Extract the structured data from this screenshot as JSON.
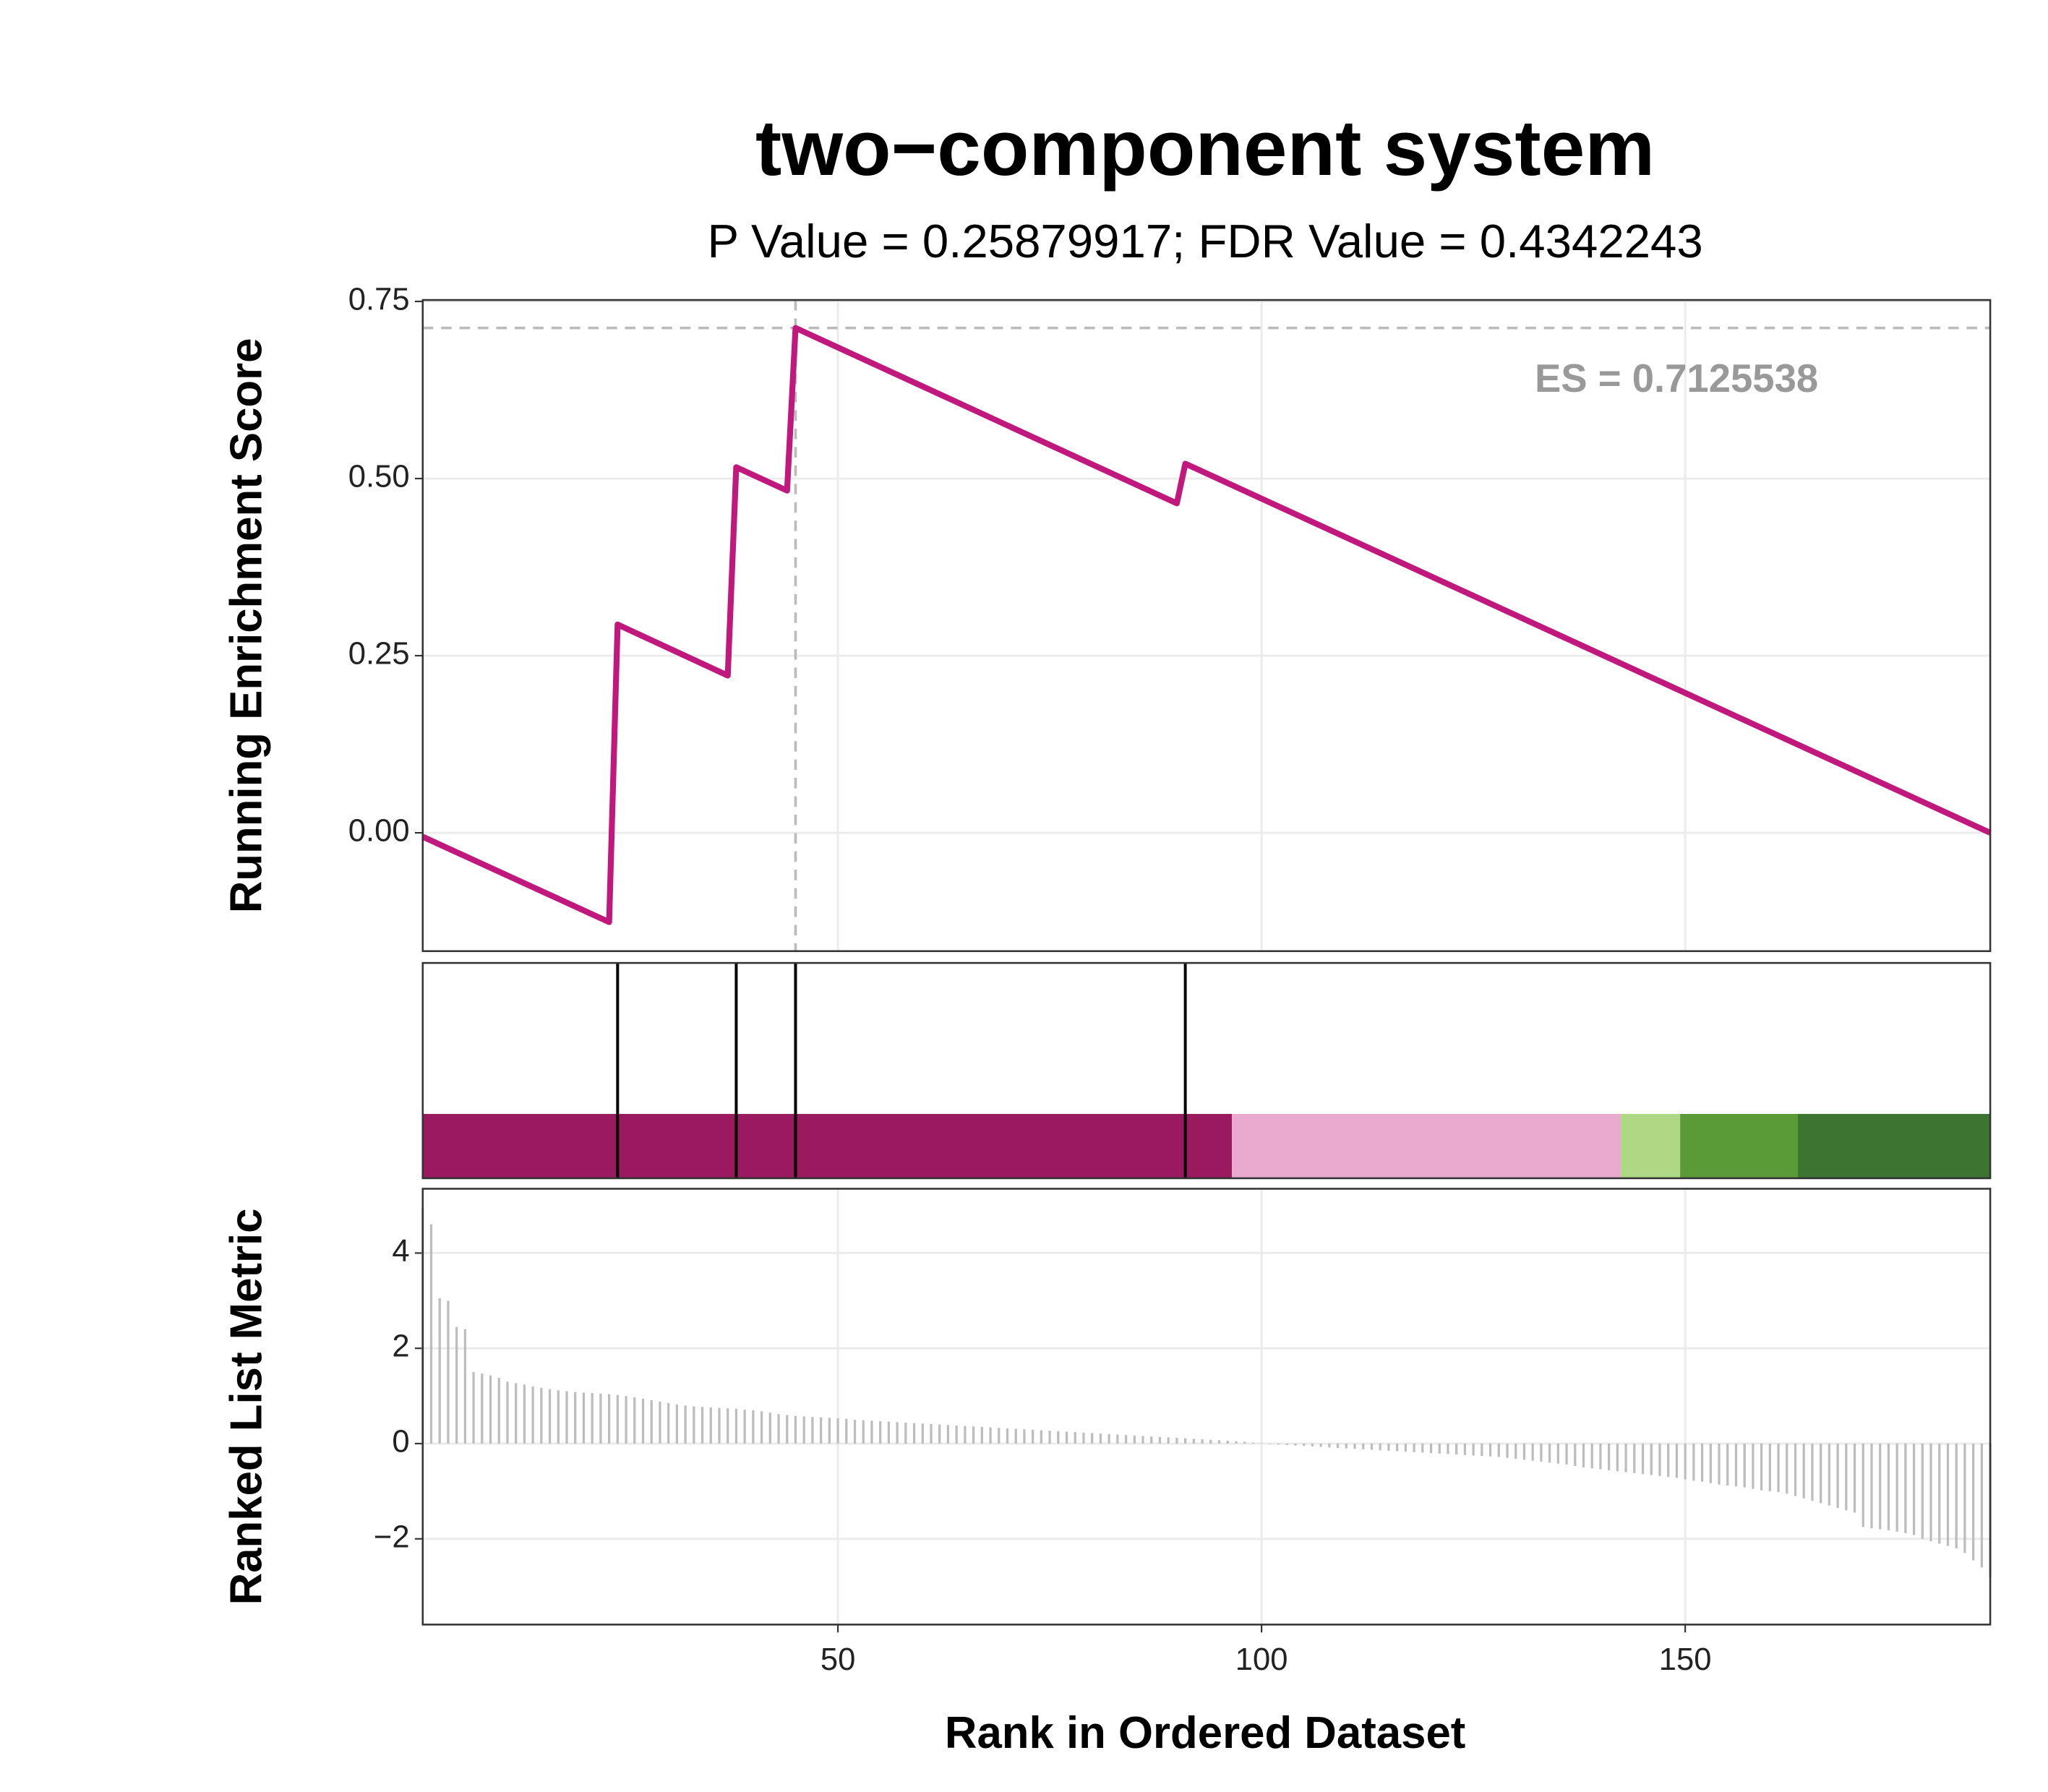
{
  "chart_data": [
    {
      "type": "line",
      "title": "two−component system",
      "subtitle": "P Value = 0.25879917; FDR Value = 0.4342243",
      "y_label": "Running Enrichment Score",
      "x": [
        1,
        23,
        24,
        37,
        38,
        44,
        45,
        90,
        91,
        186
      ],
      "values": [
        -0.0055,
        -0.126,
        0.294,
        0.222,
        0.516,
        0.483,
        0.7125538,
        0.465,
        0.521,
        0
      ],
      "color": "#c0187c",
      "xlim": [
        1,
        186
      ],
      "xticks": [
        50,
        100,
        150
      ],
      "ylim": [
        -0.167,
        0.752
      ],
      "yticks": [
        {
          "value": 0,
          "label": "0.00"
        },
        {
          "value": 0.25,
          "label": "0.25"
        },
        {
          "value": 0.5,
          "label": "0.50"
        },
        {
          "value": 0.75,
          "label": "0.75"
        }
      ],
      "grid": true,
      "es": 0.7125538,
      "es_label": "ES = 0.7125538",
      "peak_rank": 45
    },
    {
      "type": "hits",
      "hits": [
        24,
        38,
        45,
        91
      ],
      "color": "#000000",
      "xlim": [
        1,
        186
      ],
      "color_bar": [
        {
          "from": 1,
          "to": 96.5,
          "color": "#991a5f"
        },
        {
          "from": 96.5,
          "to": 142.4,
          "color": "#eaa9cf"
        },
        {
          "from": 142.4,
          "to": 149.4,
          "color": "#aed884"
        },
        {
          "from": 149.4,
          "to": 163.3,
          "color": "#5b9b37"
        },
        {
          "from": 163.3,
          "to": 186,
          "color": "#3c7431"
        }
      ]
    },
    {
      "type": "bar",
      "y_label": "Ranked List Metric",
      "x_label": "Rank in Ordered Dataset",
      "values": [
        4.95,
        4.6,
        3.05,
        3.0,
        2.45,
        2.4,
        1.5,
        1.47,
        1.43,
        1.38,
        1.3,
        1.27,
        1.24,
        1.2,
        1.17,
        1.14,
        1.12,
        1.1,
        1.08,
        1.07,
        1.06,
        1.05,
        1.04,
        1.02,
        1.0,
        0.97,
        0.94,
        0.91,
        0.88,
        0.85,
        0.82,
        0.8,
        0.78,
        0.77,
        0.76,
        0.75,
        0.74,
        0.73,
        0.71,
        0.7,
        0.68,
        0.65,
        0.62,
        0.6,
        0.58,
        0.57,
        0.56,
        0.55,
        0.54,
        0.53,
        0.52,
        0.5,
        0.49,
        0.48,
        0.47,
        0.46,
        0.45,
        0.44,
        0.43,
        0.42,
        0.41,
        0.4,
        0.39,
        0.38,
        0.37,
        0.36,
        0.35,
        0.34,
        0.33,
        0.32,
        0.31,
        0.3,
        0.29,
        0.28,
        0.27,
        0.26,
        0.25,
        0.24,
        0.23,
        0.22,
        0.21,
        0.2,
        0.19,
        0.18,
        0.17,
        0.16,
        0.15,
        0.14,
        0.13,
        0.12,
        0.11,
        0.1,
        0.09,
        0.08,
        0.07,
        0.06,
        0.05,
        0.04,
        0.02,
        0.01,
        -0.01,
        -0.02,
        -0.03,
        -0.04,
        -0.05,
        -0.06,
        -0.07,
        -0.08,
        -0.09,
        -0.1,
        -0.11,
        -0.12,
        -0.13,
        -0.14,
        -0.15,
        -0.16,
        -0.17,
        -0.18,
        -0.19,
        -0.2,
        -0.21,
        -0.22,
        -0.23,
        -0.24,
        -0.25,
        -0.26,
        -0.27,
        -0.28,
        -0.3,
        -0.32,
        -0.34,
        -0.36,
        -0.38,
        -0.4,
        -0.42,
        -0.44,
        -0.47,
        -0.5,
        -0.52,
        -0.54,
        -0.56,
        -0.58,
        -0.6,
        -0.62,
        -0.64,
        -0.66,
        -0.68,
        -0.7,
        -0.72,
        -0.75,
        -0.78,
        -0.8,
        -0.83,
        -0.86,
        -0.88,
        -0.9,
        -0.92,
        -0.95,
        -0.98,
        -1.0,
        -1.02,
        -1.05,
        -1.1,
        -1.15,
        -1.2,
        -1.25,
        -1.3,
        -1.35,
        -1.4,
        -1.45,
        -1.75,
        -1.78,
        -1.8,
        -1.82,
        -1.85,
        -1.88,
        -1.92,
        -2.0,
        -2.05,
        -2.1,
        -2.15,
        -2.2,
        -2.3,
        -2.45,
        -2.6,
        -2.8
      ],
      "color": "#bdbdbd",
      "xlim": [
        1,
        186
      ],
      "xticks": [
        50,
        100,
        150
      ],
      "ylim": [
        -3.8,
        5.35
      ],
      "yticks": [
        {
          "value": -2,
          "label": "−2"
        },
        0,
        2,
        4
      ],
      "grid": true
    }
  ]
}
